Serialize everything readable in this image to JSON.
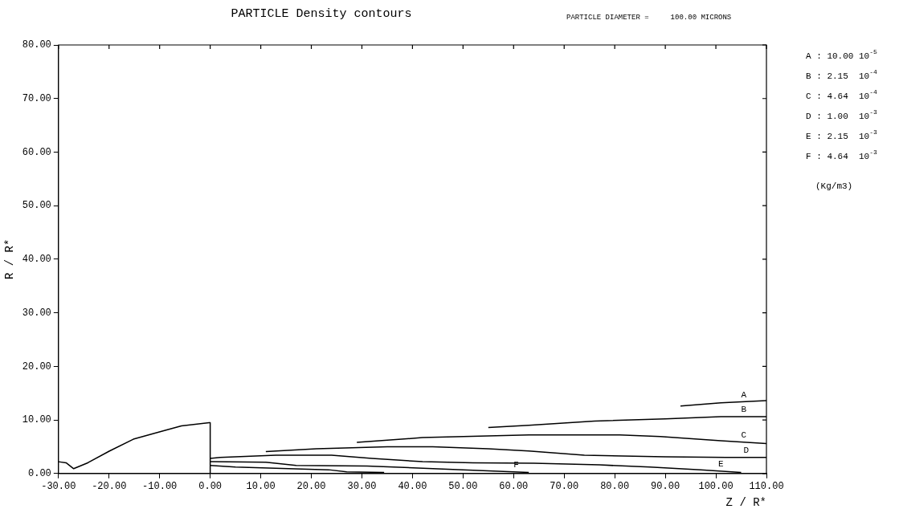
{
  "chart_data": {
    "type": "line",
    "title": "PARTICLE Density contours",
    "subtitle": "PARTICLE DIAMETER =     100.00 MICRONS",
    "xlabel": "Z / R*",
    "ylabel": "R / R*",
    "xlim": [
      -30,
      110
    ],
    "xticks": [
      {
        "value": -30,
        "label": "-30.00"
      },
      {
        "value": -20,
        "label": "-20.00"
      },
      {
        "value": -10,
        "label": "-10.00"
      },
      {
        "value": 0,
        "label": "0.00"
      },
      {
        "value": 10,
        "label": "10.00"
      },
      {
        "value": 20,
        "label": "20.00"
      },
      {
        "value": 30,
        "label": "30.00"
      },
      {
        "value": 40,
        "label": "40.00"
      },
      {
        "value": 50,
        "label": "50.00"
      },
      {
        "value": 60,
        "label": "60.00"
      },
      {
        "value": 70,
        "label": "70.00"
      },
      {
        "value": 80,
        "label": "80.00"
      },
      {
        "value": 90,
        "label": "90.00"
      },
      {
        "value": 100,
        "label": "100.00"
      },
      {
        "value": 110,
        "label": "110.00"
      }
    ],
    "ylim": [
      0,
      80
    ],
    "yticks": [
      {
        "value": 0,
        "label": "0.00"
      },
      {
        "value": 10,
        "label": "10.00"
      },
      {
        "value": 20,
        "label": "20.00"
      },
      {
        "value": 30,
        "label": "30.00"
      },
      {
        "value": 40,
        "label": "40.00"
      },
      {
        "value": 50,
        "label": "50.00"
      },
      {
        "value": 60,
        "label": "60.00"
      },
      {
        "value": 70,
        "label": "70.00"
      },
      {
        "value": 80,
        "label": "80.00"
      }
    ],
    "grid": false,
    "legend": false,
    "marker": "none",
    "line_style": "solid",
    "annotations": [
      "A : 10.00 10$^{-5}$",
      "B : 2.15  10$^{-4}$",
      "C : 4.64  10$^{-4}$",
      "D : 1.00  10$^{-3}$",
      "E : 2.15  10$^{-3}$",
      "F : 4.64  10$^{-3}$",
      "(Kg/m3)"
    ],
    "series": [
      {
        "color": "#000000",
        "x": [
          -30,
          -28.5,
          -27,
          -24.2,
          -19.9,
          -15.2,
          -9.9,
          -5.7,
          -0.2,
          0,
          0
        ],
        "values": [
          2.2,
          2.0,
          0.9,
          2.0,
          4.2,
          6.4,
          7.8,
          8.9,
          9.5,
          9.5,
          0
        ]
      },
      {
        "name": "A",
        "color": "#000000",
        "x": [
          93,
          101,
          110
        ],
        "values": [
          12.6,
          13.2,
          13.6
        ]
      },
      {
        "name": "B",
        "color": "#000000",
        "x": [
          55,
          63,
          76,
          90,
          101,
          110
        ],
        "values": [
          8.6,
          9.0,
          9.8,
          10.2,
          10.6,
          10.6
        ]
      },
      {
        "name": "C",
        "color": "#000000",
        "x": [
          29,
          42,
          63,
          81,
          89,
          101,
          110
        ],
        "values": [
          5.8,
          6.7,
          7.2,
          7.2,
          6.9,
          6.1,
          5.6
        ]
      },
      {
        "name": "D",
        "color": "#000000",
        "x": [
          11,
          21,
          35,
          44,
          55,
          63,
          74,
          90,
          102,
          110
        ],
        "values": [
          4.1,
          4.6,
          5.0,
          5.0,
          4.6,
          4.2,
          3.4,
          3.1,
          3.0,
          3.0
        ]
      },
      {
        "name": "E",
        "color": "#000000",
        "x": [
          0,
          2,
          13,
          24,
          32,
          42,
          52,
          64,
          77,
          87,
          97,
          105
        ],
        "values": [
          2.8,
          3.0,
          3.4,
          3.4,
          2.8,
          2.2,
          2.0,
          1.9,
          1.6,
          1.2,
          0.7,
          0.2
        ]
      },
      {
        "name": "F",
        "color": "#000000",
        "x": [
          0,
          11,
          17,
          31,
          47,
          58,
          63
        ],
        "values": [
          2.2,
          2.1,
          1.5,
          1.4,
          0.8,
          0.4,
          0.2
        ]
      },
      {
        "color": "#000000",
        "x": [
          0,
          5,
          15.5,
          23.4,
          27,
          34.4
        ],
        "values": [
          1.5,
          1.2,
          0.9,
          0.7,
          0.3,
          0.2
        ]
      }
    ]
  }
}
